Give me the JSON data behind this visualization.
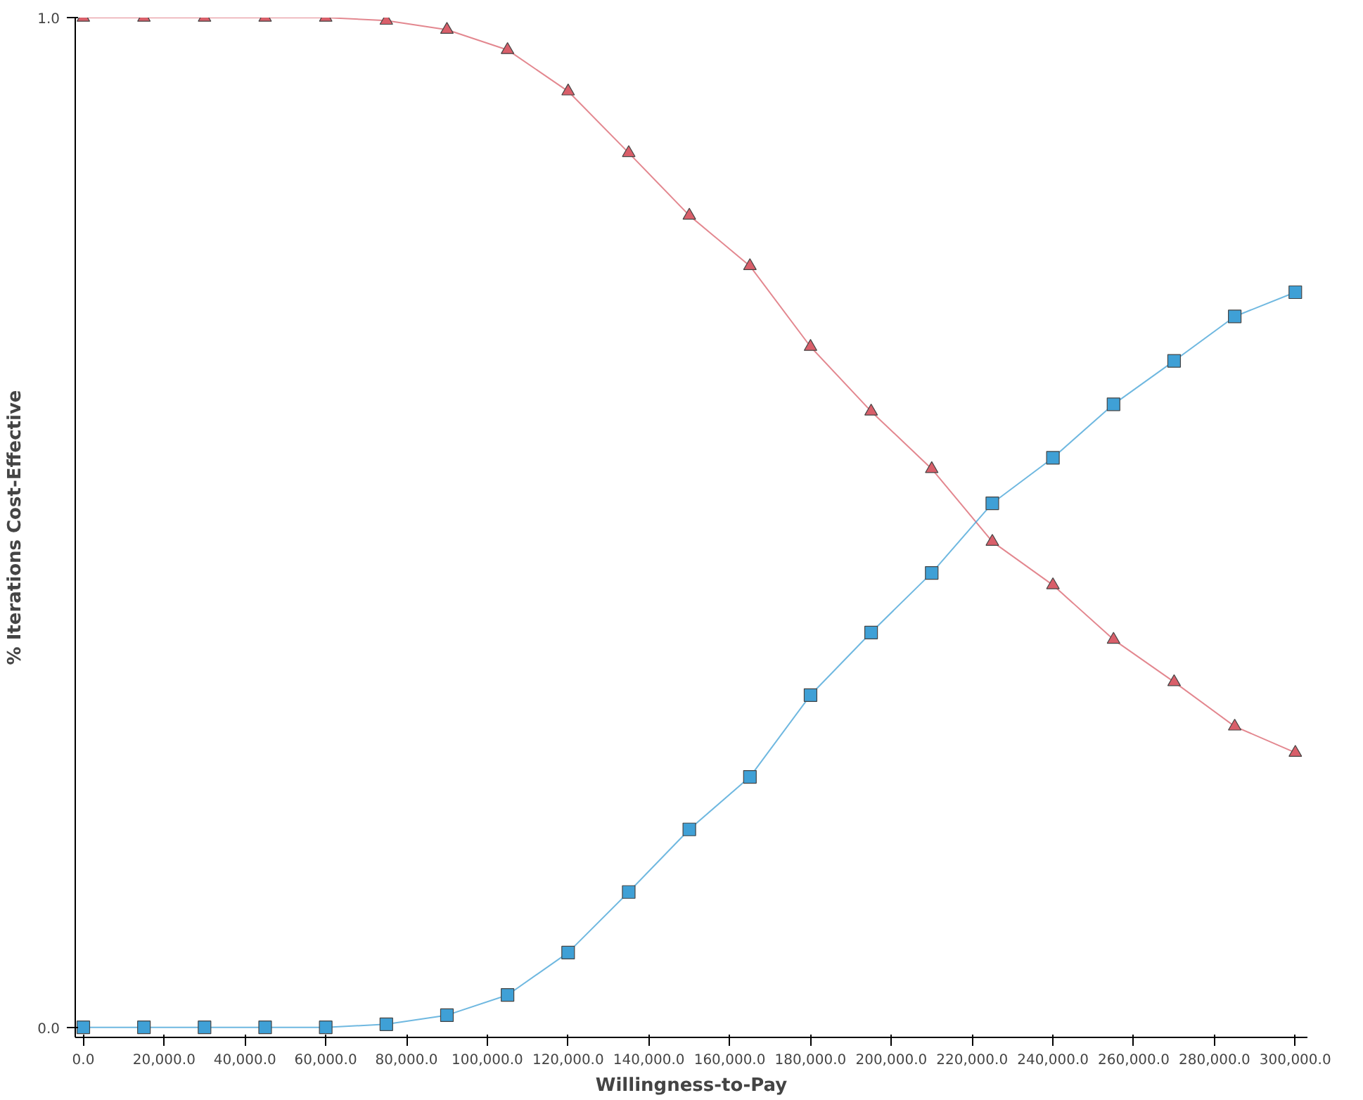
{
  "chart_data": {
    "type": "line",
    "xlabel": "Willingness-to-Pay",
    "ylabel": "% Iterations Cost-Effective",
    "x": [
      0,
      15000,
      30000,
      45000,
      60000,
      75000,
      90000,
      105000,
      120000,
      135000,
      150000,
      165000,
      180000,
      195000,
      210000,
      225000,
      240000,
      255000,
      270000,
      285000,
      300000
    ],
    "series": [
      {
        "color": "#d95f6a",
        "marker": "triangle",
        "values": [
          1.0,
          1.0,
          1.0,
          1.0,
          1.0,
          0.997,
          0.988,
          0.968,
          0.927,
          0.866,
          0.804,
          0.754,
          0.674,
          0.61,
          0.553,
          0.481,
          0.438,
          0.384,
          0.342,
          0.298,
          0.272
        ]
      },
      {
        "color": "#3fa0d6",
        "marker": "square",
        "values": [
          0,
          0,
          0,
          0,
          0,
          0.003,
          0.012,
          0.032,
          0.074,
          0.134,
          0.196,
          0.248,
          0.329,
          0.391,
          0.45,
          0.519,
          0.564,
          0.617,
          0.66,
          0.704,
          0.728
        ]
      }
    ],
    "xlim": [
      -2000,
      303000
    ],
    "ylim": [
      -0.01,
      1.0
    ],
    "xticks": [
      {
        "value": 0,
        "label": "0.0"
      },
      {
        "value": 20000,
        "label": "20,000.0"
      },
      {
        "value": 40000,
        "label": "40,000.0"
      },
      {
        "value": 60000,
        "label": "60,000.0"
      },
      {
        "value": 80000,
        "label": "80,000.0"
      },
      {
        "value": 100000,
        "label": "100,000.0"
      },
      {
        "value": 120000,
        "label": "120,000.0"
      },
      {
        "value": 140000,
        "label": "140,000.0"
      },
      {
        "value": 160000,
        "label": "160,000.0"
      },
      {
        "value": 180000,
        "label": "180,000.0"
      },
      {
        "value": 200000,
        "label": "200,000.0"
      },
      {
        "value": 220000,
        "label": "220,000.0"
      },
      {
        "value": 240000,
        "label": "240,000.0"
      },
      {
        "value": 260000,
        "label": "260,000.0"
      },
      {
        "value": 280000,
        "label": "280,000.0"
      },
      {
        "value": 300000,
        "label": "300,000.0"
      }
    ],
    "yticks": [
      {
        "value": 0,
        "label": "0.0"
      },
      {
        "value": 1,
        "label": "1.0"
      }
    ],
    "line_style": "solid"
  }
}
